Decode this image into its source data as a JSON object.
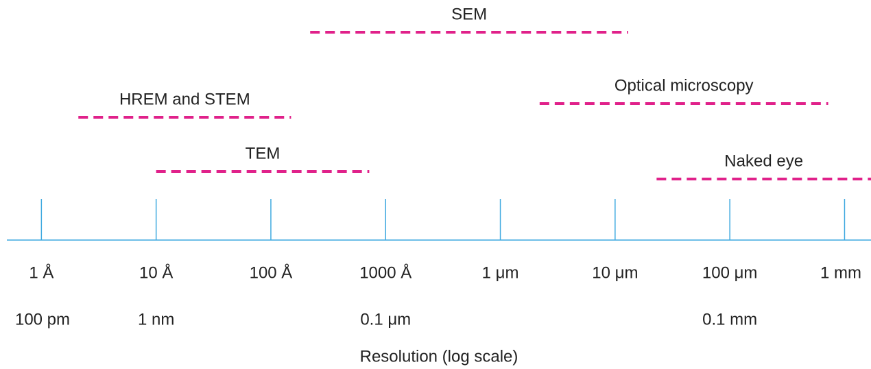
{
  "chart_data": {
    "type": "range",
    "xlabel": "Resolution (log scale)",
    "xscale": "log",
    "xlim": [
      5e-11,
      0.0017
    ],
    "xticks": [
      {
        "value": 1e-10,
        "label": "1 Å"
      },
      {
        "value": 1e-09,
        "label": "10 Å"
      },
      {
        "value": 1e-08,
        "label": "100 Å"
      },
      {
        "value": 1e-07,
        "label": "1000 Å"
      },
      {
        "value": 1e-06,
        "label": "1 μm"
      },
      {
        "value": 1e-05,
        "label": "10 μm"
      },
      {
        "value": 0.0001,
        "label": "100 μm"
      },
      {
        "value": 0.001,
        "label": "1 mm"
      }
    ],
    "xticks_secondary": [
      {
        "value": 1e-10,
        "label": "100 pm"
      },
      {
        "value": 1e-09,
        "label": "1 nm"
      },
      {
        "value": 1e-07,
        "label": "0.1 μm"
      },
      {
        "value": 0.0001,
        "label": "0.1 mm"
      }
    ],
    "axis_color": "#3fa9e0",
    "series": [
      {
        "name": "SEM",
        "color": "#e0218a",
        "values": [
          2.2e-08,
          1.3e-05
        ]
      },
      {
        "name": "Optical microscopy",
        "color": "#e0218a",
        "values": [
          2.2e-06,
          0.00072
        ]
      },
      {
        "name": "HREM and STEM",
        "color": "#e0218a",
        "values": [
          2.1e-10,
          1.5e-08
        ]
      },
      {
        "name": "TEM",
        "color": "#e0218a",
        "values": [
          1e-09,
          7.2e-08
        ]
      },
      {
        "name": "Naked eye",
        "color": "#e0218a",
        "values": [
          2.3e-05,
          0.0017
        ]
      }
    ]
  }
}
